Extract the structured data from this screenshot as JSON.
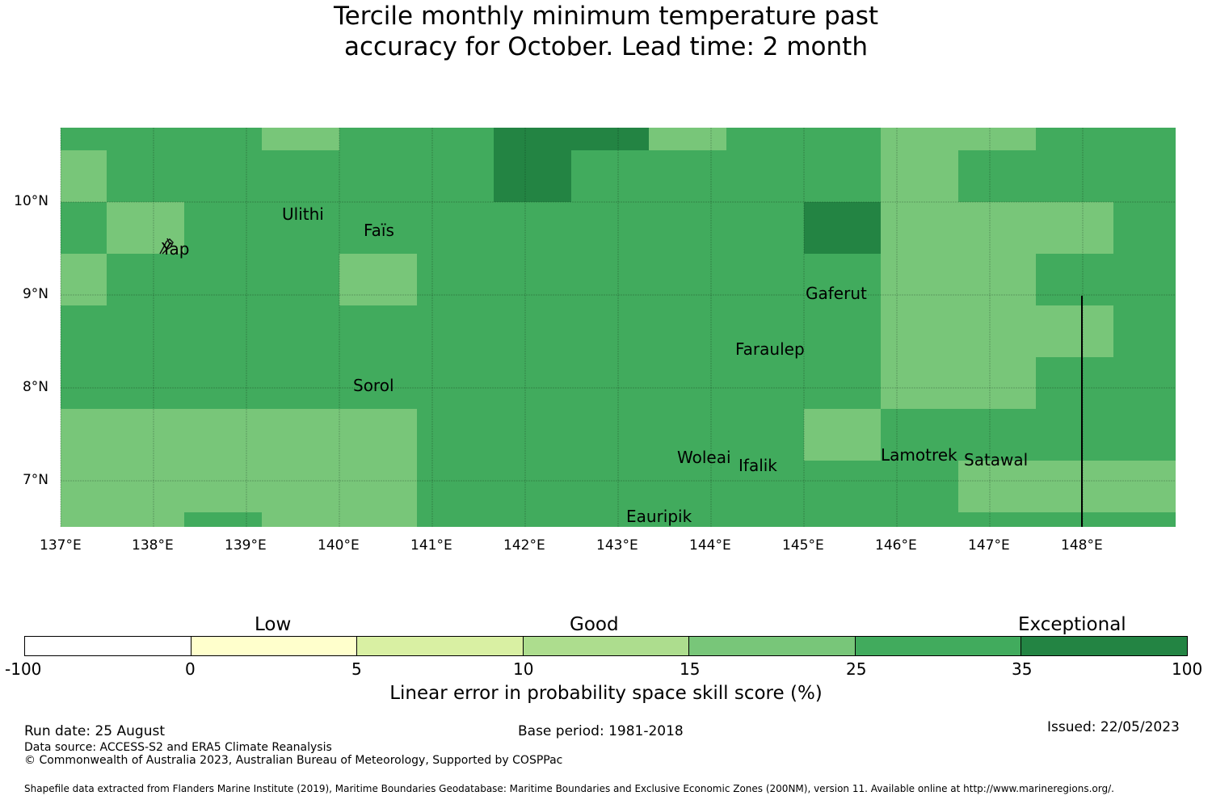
{
  "title": {
    "line1": "Tercile monthly minimum temperature past",
    "line2": "accuracy for October. Lead time: 2 month"
  },
  "map": {
    "x_ticks": [
      "137°E",
      "138°E",
      "139°E",
      "140°E",
      "141°E",
      "142°E",
      "143°E",
      "144°E",
      "145°E",
      "146°E",
      "147°E",
      "148°E"
    ],
    "y_ticks": [
      "10°N",
      "9°N",
      "8°N",
      "7°N"
    ],
    "places": [
      "Ulithi",
      "Faïs",
      "Yap",
      "Gaferut",
      "Faraulep",
      "Sorol",
      "Woleai",
      "Ifalik",
      "Lamotrek",
      "Satawal",
      "Eauripik"
    ],
    "colors": {
      "c10_15": "#aadd8a",
      "c15_25": "#78c679",
      "c25_35": "#41ab5d",
      "c35_100": "#238443"
    }
  },
  "colorbar": {
    "categories": [
      "Low",
      "Good",
      "Exceptional"
    ],
    "ticks": [
      "-100",
      "0",
      "5",
      "10",
      "15",
      "25",
      "35",
      "100"
    ],
    "colors": [
      "#ffffff",
      "#ffffcc",
      "#d9f0a3",
      "#addd8e",
      "#78c679",
      "#41ab5d",
      "#238443"
    ],
    "label": "Linear error in probability space skill score (%)"
  },
  "footer": {
    "run_date": "Run date: 25 August",
    "base_period": "Base period: 1981-2018",
    "issued": "Issued: 22/05/2023",
    "data_source": "Data source: ACCESS-S2 and ERA5 Climate Reanalysis",
    "copyright": "© Commonwealth of Australia 2023, Australian Bureau of Meteorology, Supported by COSPPac",
    "shapefile": "Shapefile data extracted from Flanders Marine Institute (2019), Maritime Boundaries Geodatabase: Maritime Boundaries and Exclusive Economic Zones (200NM), version 11. Available online at http://www.marineregions.org/."
  }
}
